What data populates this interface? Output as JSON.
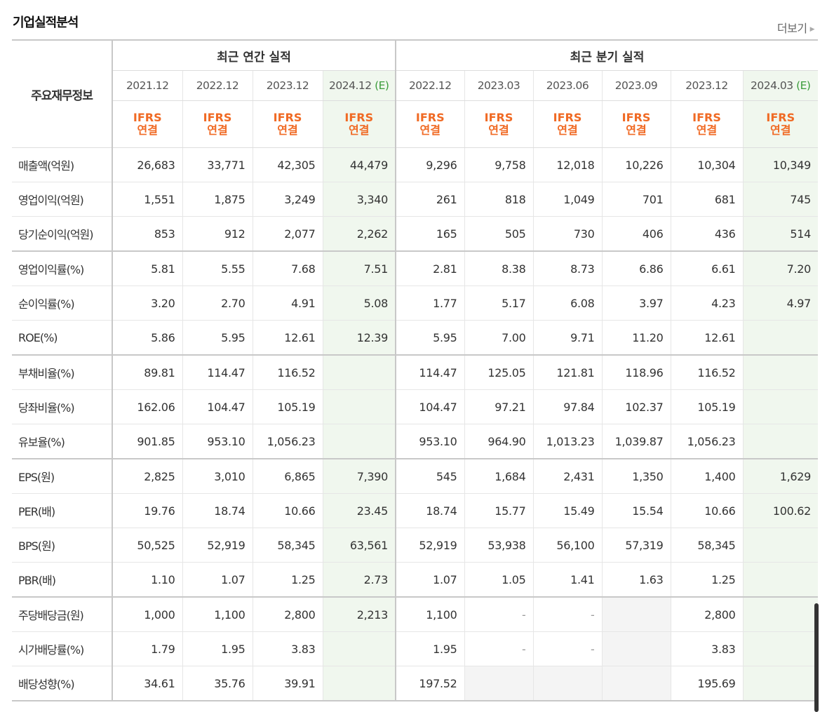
{
  "header": {
    "title": "기업실적분석",
    "more_label": "더보기"
  },
  "table": {
    "corner_label": "주요재무정보",
    "groups": {
      "annual": "최근 연간 실적",
      "quarter": "최근 분기 실적"
    },
    "periods": [
      "2021.12",
      "2022.12",
      "2023.12",
      "2024.12",
      "2022.12",
      "2023.03",
      "2023.06",
      "2023.09",
      "2023.12",
      "2024.03"
    ],
    "estimate_mark": "(E)",
    "ifrs_line1": "IFRS",
    "ifrs_line2": "연결",
    "rows": [
      {
        "label": "매출액(억원)",
        "cells": [
          "26,683",
          "33,771",
          "42,305",
          "44,479",
          "9,296",
          "9,758",
          "12,018",
          "10,226",
          "10,304",
          "10,349"
        ]
      },
      {
        "label": "영업이익(억원)",
        "cells": [
          "1,551",
          "1,875",
          "3,249",
          "3,340",
          "261",
          "818",
          "1,049",
          "701",
          "681",
          "745"
        ]
      },
      {
        "label": "당기순이익(억원)",
        "cells": [
          "853",
          "912",
          "2,077",
          "2,262",
          "165",
          "505",
          "730",
          "406",
          "436",
          "514"
        ]
      },
      {
        "label": "영업이익률(%)",
        "cells": [
          "5.81",
          "5.55",
          "7.68",
          "7.51",
          "2.81",
          "8.38",
          "8.73",
          "6.86",
          "6.61",
          "7.20"
        ]
      },
      {
        "label": "순이익률(%)",
        "cells": [
          "3.20",
          "2.70",
          "4.91",
          "5.08",
          "1.77",
          "5.17",
          "6.08",
          "3.97",
          "4.23",
          "4.97"
        ]
      },
      {
        "label": "ROE(%)",
        "cells": [
          "5.86",
          "5.95",
          "12.61",
          "12.39",
          "5.95",
          "7.00",
          "9.71",
          "11.20",
          "12.61",
          ""
        ]
      },
      {
        "label": "부채비율(%)",
        "cells": [
          "89.81",
          "114.47",
          "116.52",
          "",
          "114.47",
          "125.05",
          "121.81",
          "118.96",
          "116.52",
          ""
        ]
      },
      {
        "label": "당좌비율(%)",
        "cells": [
          "162.06",
          "104.47",
          "105.19",
          "",
          "104.47",
          "97.21",
          "97.84",
          "102.37",
          "105.19",
          ""
        ]
      },
      {
        "label": "유보율(%)",
        "cells": [
          "901.85",
          "953.10",
          "1,056.23",
          "",
          "953.10",
          "964.90",
          "1,013.23",
          "1,039.87",
          "1,056.23",
          ""
        ]
      },
      {
        "label": "EPS(원)",
        "cells": [
          "2,825",
          "3,010",
          "6,865",
          "7,390",
          "545",
          "1,684",
          "2,431",
          "1,350",
          "1,400",
          "1,629"
        ]
      },
      {
        "label": "PER(배)",
        "cells": [
          "19.76",
          "18.74",
          "10.66",
          "23.45",
          "18.74",
          "15.77",
          "15.49",
          "15.54",
          "10.66",
          "100.62"
        ]
      },
      {
        "label": "BPS(원)",
        "cells": [
          "50,525",
          "52,919",
          "58,345",
          "63,561",
          "52,919",
          "53,938",
          "56,100",
          "57,319",
          "58,345",
          ""
        ]
      },
      {
        "label": "PBR(배)",
        "cells": [
          "1.10",
          "1.07",
          "1.25",
          "2.73",
          "1.07",
          "1.05",
          "1.41",
          "1.63",
          "1.25",
          ""
        ]
      },
      {
        "label": "주당배당금(원)",
        "cells": [
          "1,000",
          "1,100",
          "2,800",
          "2,213",
          "1,100",
          "-",
          "-",
          "",
          "2,800",
          ""
        ]
      },
      {
        "label": "시가배당률(%)",
        "cells": [
          "1.79",
          "1.95",
          "3.83",
          "",
          "1.95",
          "-",
          "-",
          "",
          "3.83",
          ""
        ]
      },
      {
        "label": "배당성향(%)",
        "cells": [
          "34.61",
          "35.76",
          "39.91",
          "",
          "197.52",
          "",
          "",
          "",
          "195.69",
          ""
        ]
      }
    ],
    "gray_cells": [
      [
        13,
        7
      ],
      [
        14,
        7
      ],
      [
        15,
        5
      ],
      [
        15,
        6
      ],
      [
        15,
        7
      ]
    ]
  }
}
